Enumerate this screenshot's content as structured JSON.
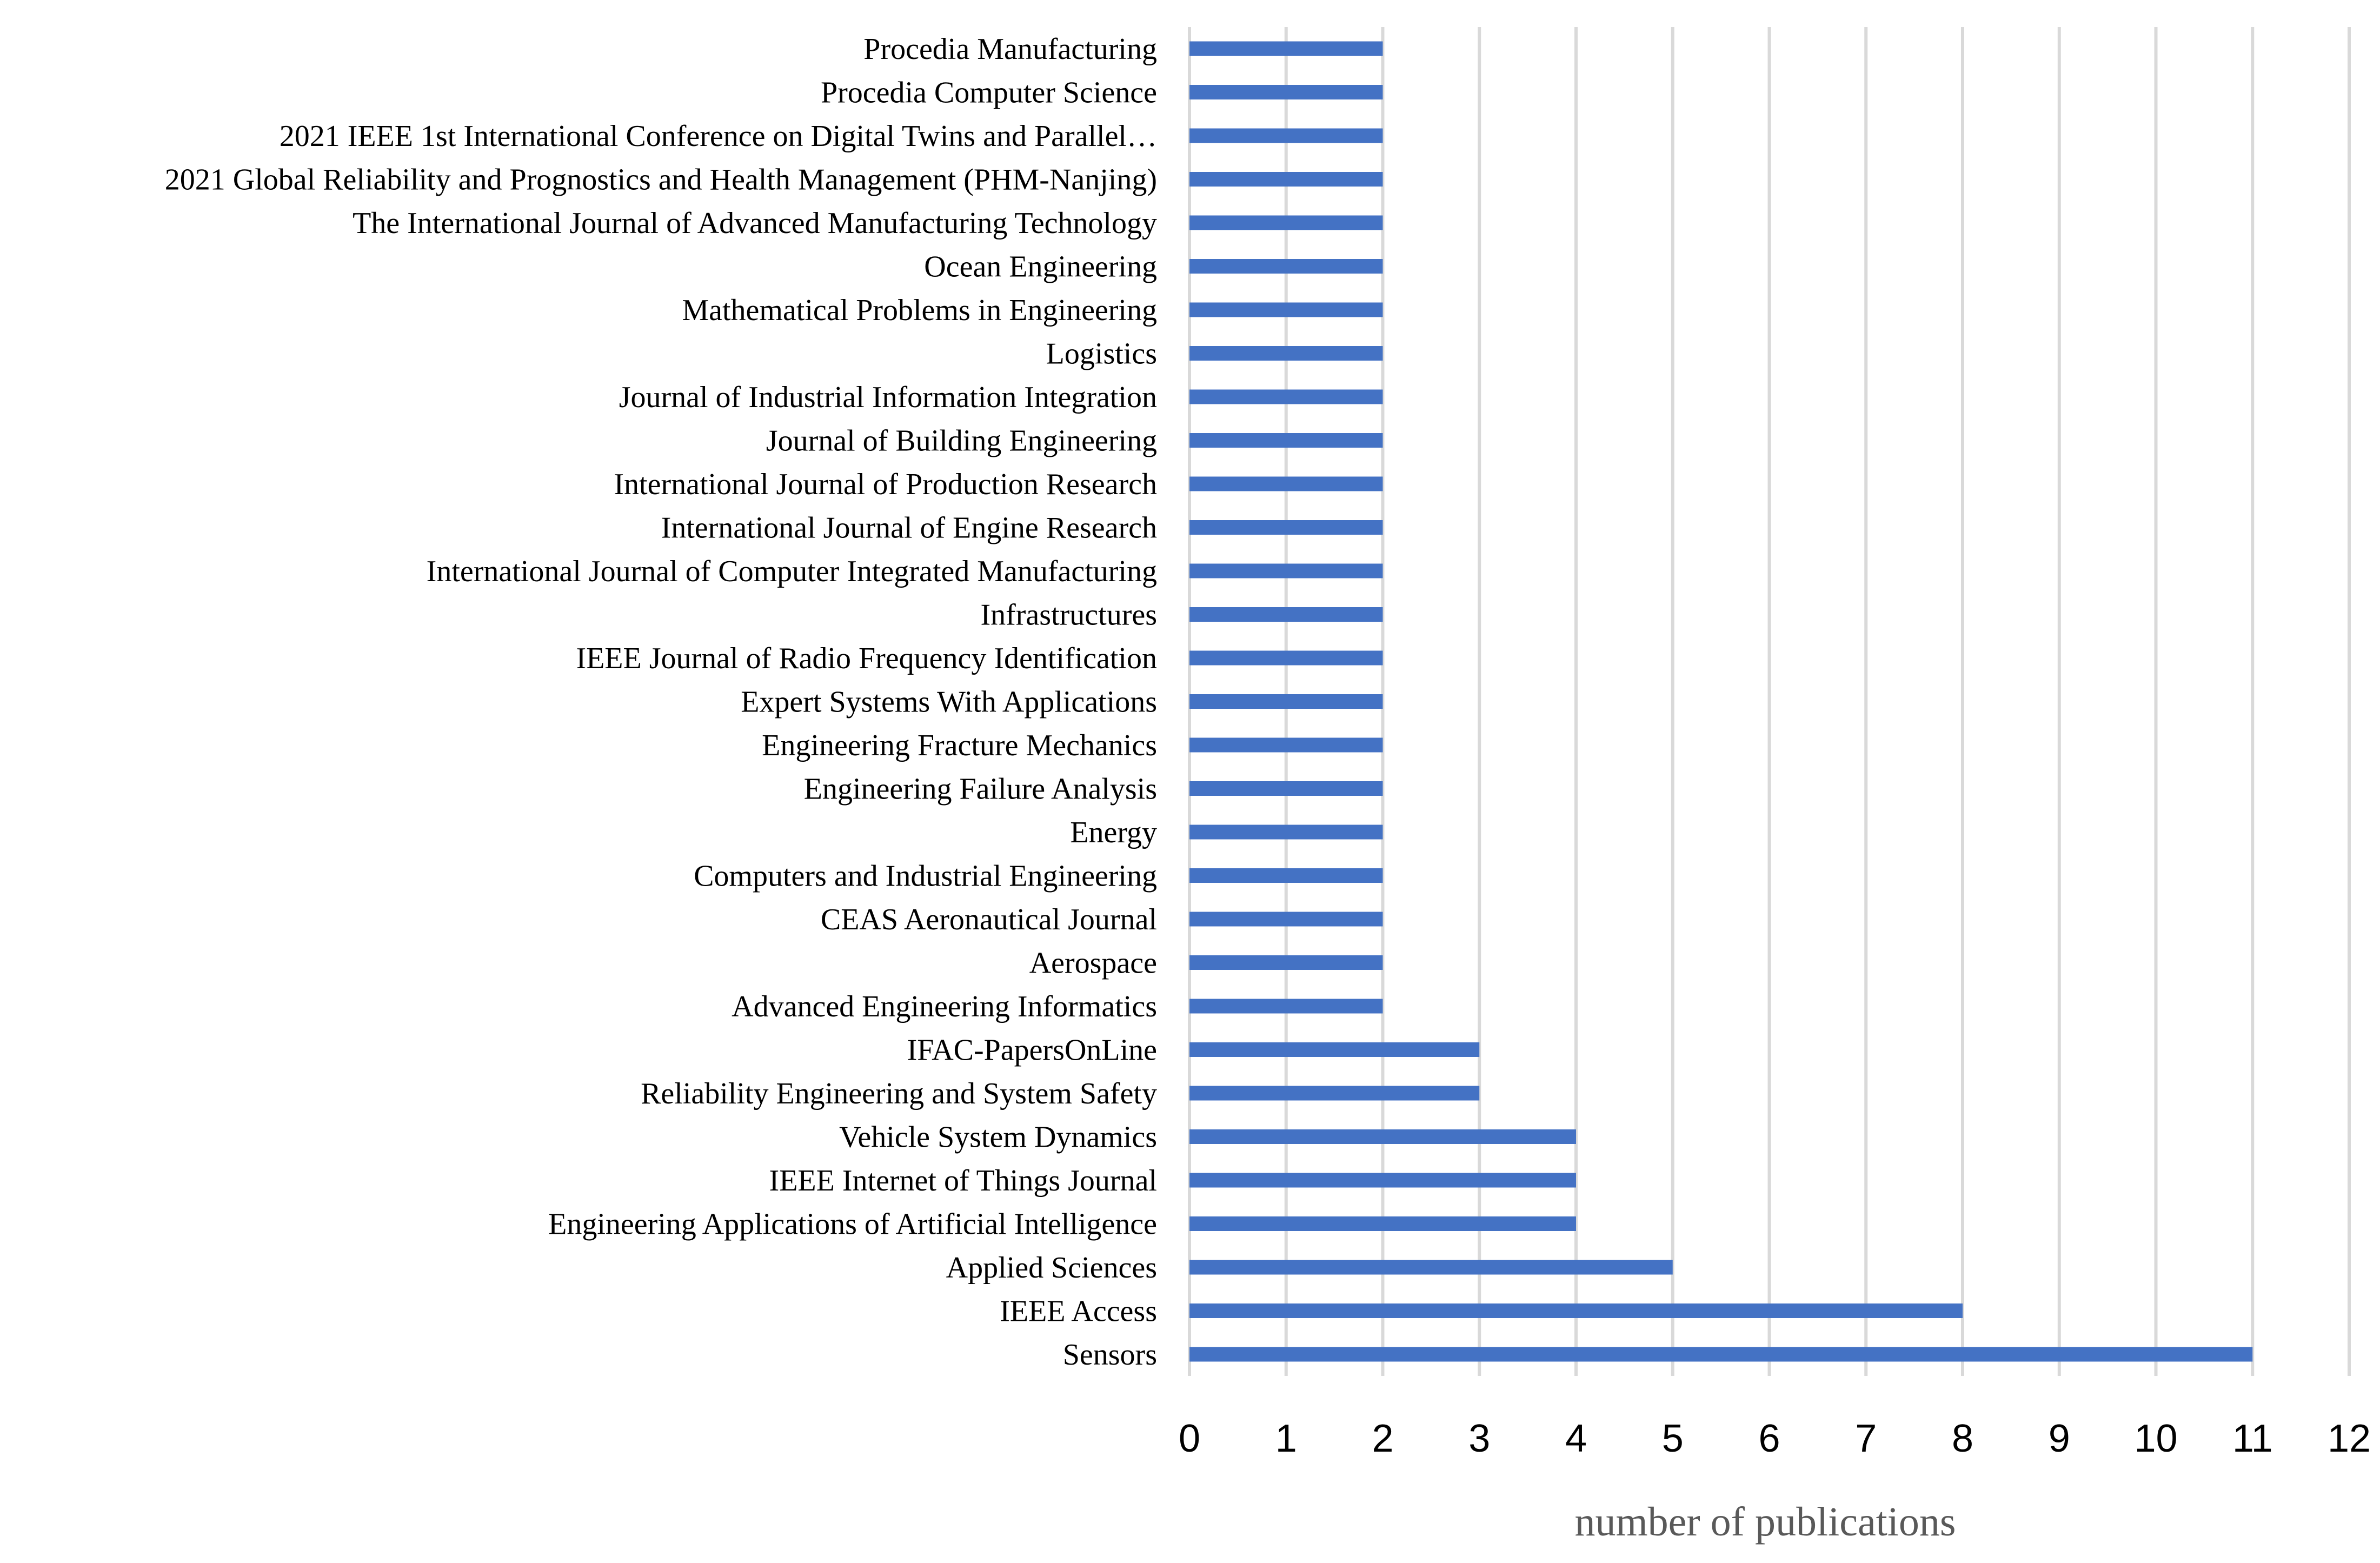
{
  "chart_data": {
    "type": "bar",
    "orientation": "horizontal",
    "xlabel": "number of publications",
    "ylabel": "",
    "xlim": [
      0,
      12
    ],
    "xticks": [
      "0",
      "1",
      "2",
      "3",
      "4",
      "5",
      "6",
      "7",
      "8",
      "9",
      "10",
      "11",
      "12"
    ],
    "grid": true,
    "bar_color": "#4472c4",
    "gridline_color": "#d9d9d9",
    "categories": [
      "Procedia Manufacturing",
      "Procedia Computer Science",
      "2021 IEEE 1st International Conference on Digital Twins and Parallel…",
      "2021 Global Reliability and Prognostics and Health Management (PHM-Nanjing)",
      "The International Journal of Advanced Manufacturing Technology",
      "Ocean Engineering",
      "Mathematical Problems in Engineering",
      "Logistics",
      "Journal of Industrial Information Integration",
      "Journal of Building Engineering",
      "International Journal of Production Research",
      "International Journal of Engine Research",
      "International Journal of Computer Integrated Manufacturing",
      "Infrastructures",
      "IEEE Journal of Radio Frequency Identification",
      "Expert Systems With Applications",
      "Engineering Fracture Mechanics",
      "Engineering Failure Analysis",
      "Energy",
      "Computers and Industrial Engineering",
      "CEAS Aeronautical Journal",
      "Aerospace",
      "Advanced Engineering Informatics",
      "IFAC-PapersOnLine",
      "Reliability Engineering and System Safety",
      "Vehicle System Dynamics",
      "IEEE Internet of Things Journal",
      "Engineering Applications of Artificial Intelligence",
      "Applied Sciences",
      "IEEE Access",
      "Sensors"
    ],
    "values": [
      2,
      2,
      2,
      2,
      2,
      2,
      2,
      2,
      2,
      2,
      2,
      2,
      2,
      2,
      2,
      2,
      2,
      2,
      2,
      2,
      2,
      2,
      2,
      3,
      3,
      4,
      4,
      4,
      5,
      8,
      11
    ]
  }
}
